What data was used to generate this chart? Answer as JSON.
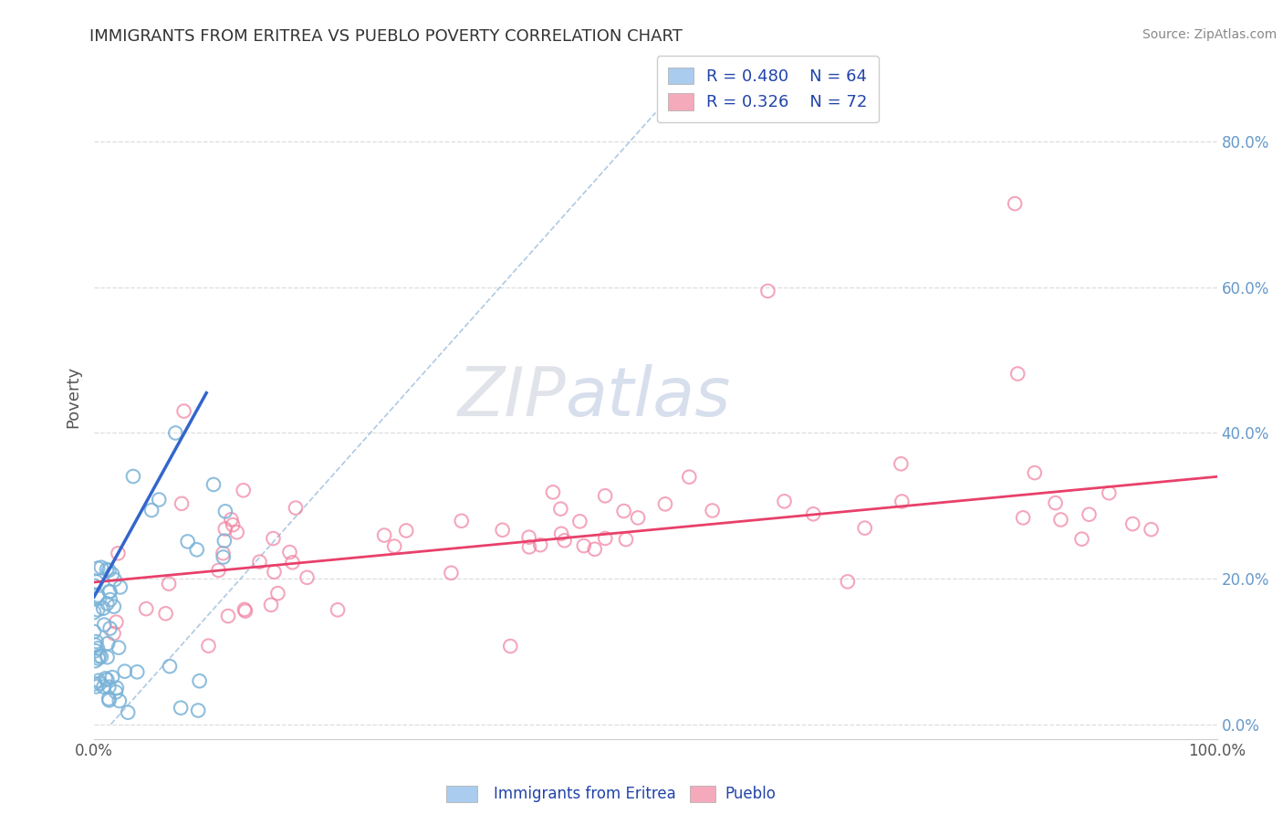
{
  "title": "IMMIGRANTS FROM ERITREA VS PUEBLO POVERTY CORRELATION CHART",
  "source": "Source: ZipAtlas.com",
  "ylabel": "Poverty",
  "yticks_labels": [
    "0.0%",
    "20.0%",
    "40.0%",
    "60.0%",
    "80.0%"
  ],
  "ytick_vals": [
    0.0,
    0.2,
    0.4,
    0.6,
    0.8
  ],
  "xlim": [
    0.0,
    1.0
  ],
  "ylim": [
    -0.02,
    0.92
  ],
  "legend1_r": "0.480",
  "legend1_n": "64",
  "legend2_r": "0.326",
  "legend2_n": "72",
  "legend1_patch_color": "#aaccee",
  "legend2_patch_color": "#f4aabb",
  "scatter1_facecolor": "none",
  "scatter1_edgecolor": "#7ab3d8",
  "scatter2_facecolor": "none",
  "scatter2_edgecolor": "#f080a0",
  "trendline1_color": "#3366cc",
  "trendline2_color": "#e8406a",
  "dash_color": "#9abcde",
  "watermark_color": "#ccd8ec",
  "background_color": "#ffffff",
  "grid_color": "#dddddd",
  "title_color": "#333333",
  "ytick_color": "#6699cc",
  "xtick_color": "#555555",
  "ylabel_color": "#555555",
  "legend_text_color": "#2244aa",
  "legend_n_color": "#cc2244",
  "source_color": "#888888"
}
